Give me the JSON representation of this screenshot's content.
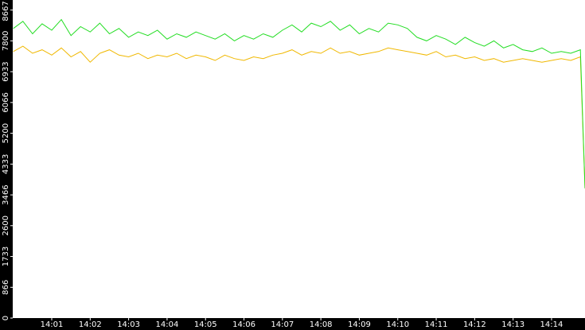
{
  "chart_data": {
    "type": "line",
    "x": [
      840,
      840.25,
      840.5,
      840.75,
      841,
      841.25,
      841.5,
      841.75,
      842,
      842.25,
      842.5,
      842.75,
      843,
      843.25,
      843.5,
      843.75,
      844,
      844.25,
      844.5,
      844.75,
      845,
      845.25,
      845.5,
      845.75,
      846,
      846.25,
      846.5,
      846.75,
      847,
      847.25,
      847.5,
      847.75,
      848,
      848.25,
      848.5,
      848.75,
      849,
      849.25,
      849.5,
      849.75,
      850,
      850.25,
      850.5,
      850.75,
      851,
      851.25,
      851.5,
      851.75,
      852,
      852.25,
      852.5,
      852.75,
      853,
      853.25,
      853.5,
      853.75,
      854,
      854.25,
      854.5,
      854.75,
      854.87
    ],
    "series": [
      {
        "color": "#22dd22",
        "values": [
          8150,
          8350,
          8000,
          8280,
          8100,
          8400,
          7950,
          8200,
          8050,
          8300,
          8000,
          8150,
          7900,
          8050,
          7950,
          8100,
          7850,
          8000,
          7900,
          8050,
          7950,
          7850,
          8000,
          7800,
          7950,
          7850,
          8000,
          7900,
          8100,
          8250,
          8050,
          8300,
          8200,
          8350,
          8100,
          8250,
          8000,
          8150,
          8050,
          8300,
          8250,
          8150,
          7900,
          7800,
          7950,
          7850,
          7700,
          7900,
          7750,
          7650,
          7800,
          7600,
          7700,
          7550,
          7500,
          7600,
          7450,
          7500,
          7450,
          7550,
          3650
        ]
      },
      {
        "color": "#f0b800",
        "values": [
          7500,
          7650,
          7450,
          7550,
          7400,
          7600,
          7350,
          7500,
          7200,
          7450,
          7550,
          7400,
          7350,
          7450,
          7300,
          7400,
          7350,
          7450,
          7300,
          7400,
          7350,
          7250,
          7400,
          7300,
          7250,
          7350,
          7300,
          7400,
          7450,
          7550,
          7400,
          7500,
          7450,
          7600,
          7450,
          7500,
          7400,
          7450,
          7500,
          7600,
          7550,
          7500,
          7450,
          7400,
          7500,
          7350,
          7400,
          7300,
          7350,
          7250,
          7300,
          7200,
          7250,
          7300,
          7250,
          7200,
          7250,
          7300,
          7250,
          7350,
          3650
        ]
      }
    ],
    "xlim": [
      840,
      854.87
    ],
    "xticks": [
      {
        "value": 841,
        "label": "14:01"
      },
      {
        "value": 842,
        "label": "14:02"
      },
      {
        "value": 843,
        "label": "14:03"
      },
      {
        "value": 844,
        "label": "14:04"
      },
      {
        "value": 845,
        "label": "14:05"
      },
      {
        "value": 846,
        "label": "14:06"
      },
      {
        "value": 847,
        "label": "14:07"
      },
      {
        "value": 848,
        "label": "14:08"
      },
      {
        "value": 849,
        "label": "14:09"
      },
      {
        "value": 850,
        "label": "14:10"
      },
      {
        "value": 851,
        "label": "14:11"
      },
      {
        "value": 852,
        "label": "14:12"
      },
      {
        "value": 853,
        "label": "14:13"
      },
      {
        "value": 854,
        "label": "14:14"
      }
    ],
    "ylim": [
      0,
      8950
    ],
    "yticks": [
      0,
      866,
      1733,
      2600,
      3466,
      4333,
      5200,
      6066,
      6933,
      7800,
      8667
    ]
  }
}
